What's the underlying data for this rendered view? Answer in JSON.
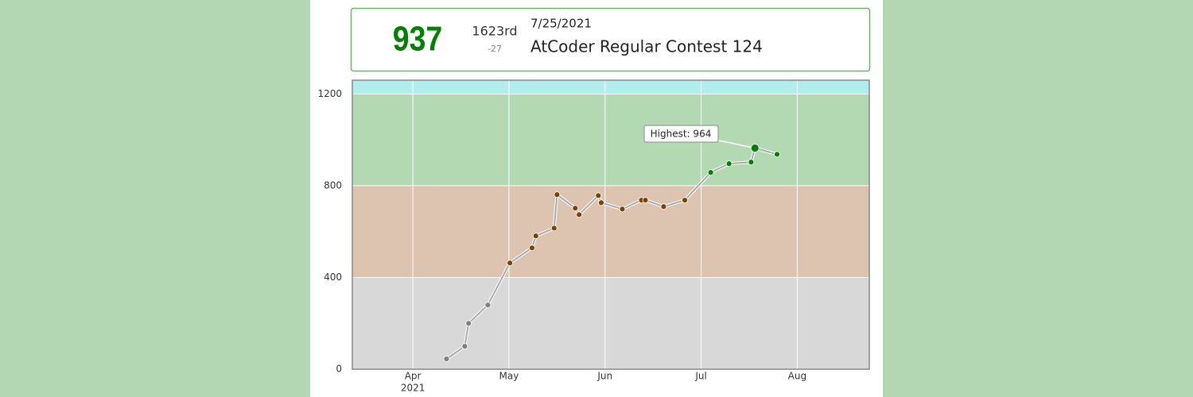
{
  "header": {
    "rating": "937",
    "rank": "1623rd",
    "diff": "-27",
    "date": "7/25/2021",
    "contest": "AtCoder Regular Contest 124"
  },
  "chart_data": {
    "type": "line",
    "x": [
      4.35,
      4.54,
      4.58,
      4.78,
      5.01,
      5.24,
      5.28,
      5.47,
      5.5,
      5.69,
      5.73,
      5.93,
      5.96,
      6.18,
      6.38,
      6.42,
      6.61,
      6.83,
      7.1,
      7.29,
      7.52,
      7.56,
      7.79
    ],
    "values": [
      45,
      100,
      200,
      280,
      463,
      529,
      581,
      615,
      761,
      702,
      674,
      757,
      726,
      698,
      737,
      737,
      709,
      737,
      858,
      896,
      903,
      964,
      937
    ],
    "xlim": [
      3.37,
      8.75
    ],
    "xticks": [
      {
        "value": 4,
        "label": "Apr"
      },
      {
        "value": 5,
        "label": "May"
      },
      {
        "value": 6,
        "label": "Jun"
      },
      {
        "value": 7,
        "label": "Jul"
      },
      {
        "value": 8,
        "label": "Aug"
      }
    ],
    "year_label": "2021",
    "ylim": [
      0,
      1260
    ],
    "yticks": [
      0,
      400,
      800,
      1200
    ],
    "grid": true,
    "bands": [
      {
        "from": 0,
        "to": 400,
        "color": "#d8d8d8"
      },
      {
        "from": 400,
        "to": 800,
        "color": "#dcc4b0"
      },
      {
        "from": 800,
        "to": 1200,
        "color": "#b3d9b3"
      },
      {
        "from": 1200,
        "to": 1260,
        "color": "#b2ecec"
      }
    ],
    "point_colors": [
      "#808080",
      "#804000",
      "#008000",
      "#00c0c0"
    ],
    "annotation": "Highest: 964"
  }
}
